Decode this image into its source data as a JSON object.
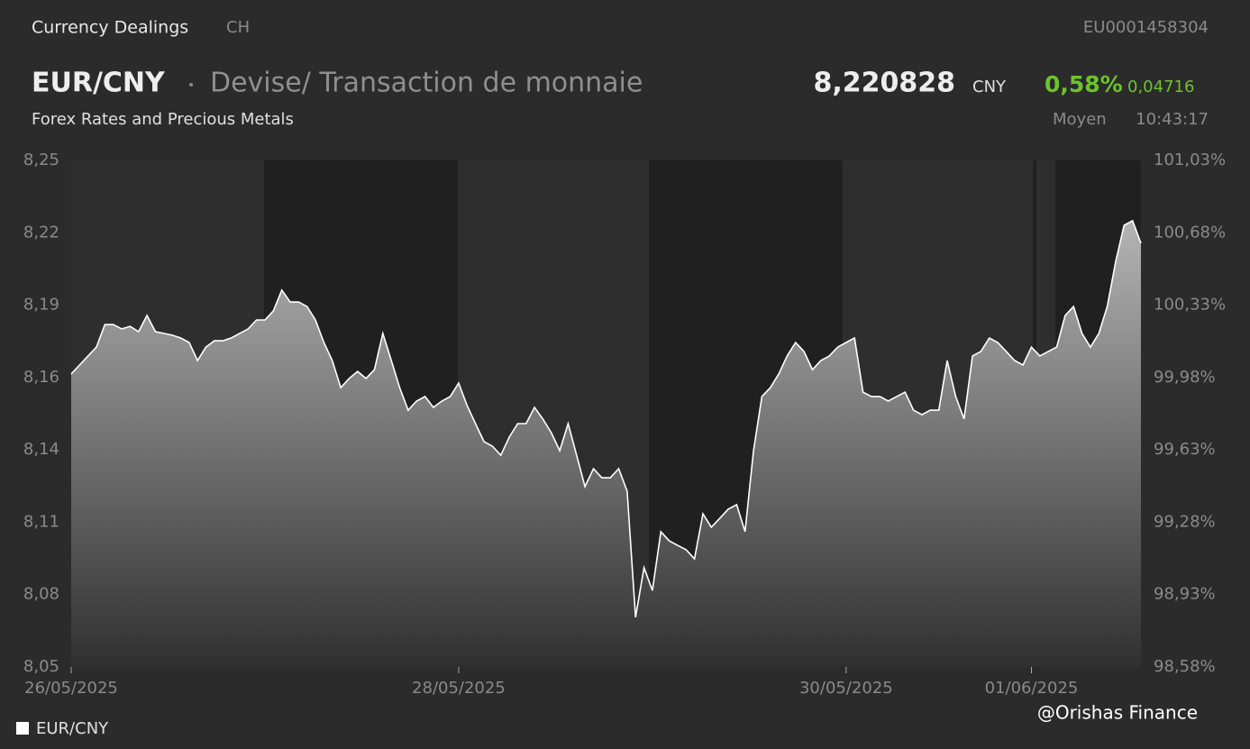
{
  "header": {
    "section": "Currency Dealings",
    "market": "CH",
    "isin": "EU0001458304",
    "pair": "EUR/CNY",
    "description": "Devise/ Transaction de monnaie",
    "subtitle": "Forex Rates and Precious Metals",
    "price": "8,220828",
    "currency": "CNY",
    "change_pct": "0,58%",
    "change_abs": "0,04716",
    "price_type": "Moyen",
    "time": "10:43:17",
    "watermark": "@Orishas Finance"
  },
  "chart_data": {
    "type": "area",
    "ylim": [
      8.05,
      8.25
    ],
    "yticks": [
      {
        "value": 8.25,
        "label": "8,25"
      },
      {
        "value": 8.2214,
        "label": "8,22"
      },
      {
        "value": 8.1929,
        "label": "8,19"
      },
      {
        "value": 8.1643,
        "label": "8,16"
      },
      {
        "value": 8.1357,
        "label": "8,14"
      },
      {
        "value": 8.1071,
        "label": "8,11"
      },
      {
        "value": 8.0786,
        "label": "8,08"
      },
      {
        "value": 8.05,
        "label": "8,05"
      }
    ],
    "y2lim": [
      98.58,
      101.03
    ],
    "y2ticks": [
      {
        "value": 101.03,
        "label": "101,03%"
      },
      {
        "value": 100.68,
        "label": "100,68%"
      },
      {
        "value": 100.33,
        "label": "100,33%"
      },
      {
        "value": 99.98,
        "label": "99,98%"
      },
      {
        "value": 99.63,
        "label": "99,63%"
      },
      {
        "value": 99.28,
        "label": "99,28%"
      },
      {
        "value": 98.93,
        "label": "98,93%"
      },
      {
        "value": 98.58,
        "label": "98,58%"
      }
    ],
    "xlim": [
      0,
      127
    ],
    "xticks": [
      {
        "value": 0,
        "label": "26/05/2025"
      },
      {
        "value": 46,
        "label": "28/05/2025"
      },
      {
        "value": 92,
        "label": "30/05/2025"
      },
      {
        "value": 114,
        "label": "01/06/2025"
      }
    ],
    "series": [
      {
        "name": "EUR/CNY",
        "color": "#ffffff",
        "values": [
          8.1657,
          8.1692,
          8.1728,
          8.1763,
          8.1852,
          8.1852,
          8.1835,
          8.1845,
          8.1824,
          8.1888,
          8.1824,
          8.1817,
          8.181,
          8.1799,
          8.1781,
          8.171,
          8.1763,
          8.1788,
          8.1788,
          8.1799,
          8.1817,
          8.1835,
          8.187,
          8.187,
          8.1906,
          8.1988,
          8.1941,
          8.1941,
          8.1923,
          8.187,
          8.1781,
          8.171,
          8.1603,
          8.1639,
          8.1667,
          8.1639,
          8.1674,
          8.1817,
          8.171,
          8.1603,
          8.1514,
          8.155,
          8.1568,
          8.1525,
          8.155,
          8.1568,
          8.1621,
          8.1532,
          8.1461,
          8.139,
          8.1372,
          8.1336,
          8.1407,
          8.1461,
          8.1461,
          8.1525,
          8.1479,
          8.1425,
          8.1354,
          8.1461,
          8.1336,
          8.1212,
          8.1283,
          8.1247,
          8.1247,
          8.1283,
          8.1194,
          8.0696,
          8.0892,
          8.0802,
          8.1034,
          8.0998,
          8.098,
          8.0963,
          8.0927,
          8.1105,
          8.1052,
          8.1087,
          8.1123,
          8.1141,
          8.1034,
          8.1354,
          8.1568,
          8.1603,
          8.1657,
          8.1728,
          8.1781,
          8.1746,
          8.1674,
          8.171,
          8.1728,
          8.1763,
          8.1781,
          8.1799,
          8.1585,
          8.1568,
          8.1568,
          8.155,
          8.1568,
          8.1585,
          8.1514,
          8.1496,
          8.1514,
          8.1514,
          8.171,
          8.1568,
          8.1479,
          8.1728,
          8.1746,
          8.1799,
          8.1781,
          8.1746,
          8.171,
          8.1692,
          8.1763,
          8.1728,
          8.1746,
          8.1763,
          8.1888,
          8.1923,
          8.1817,
          8.1763,
          8.1817,
          8.1923,
          8.2101,
          8.2244,
          8.2262,
          8.2173
        ]
      }
    ]
  }
}
